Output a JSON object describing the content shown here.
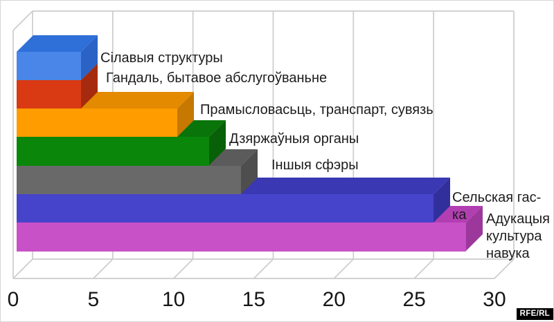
{
  "chart_data": {
    "type": "bar",
    "style": "3d-horizontal-staircase",
    "title": "",
    "xlabel": "",
    "ylabel": "",
    "xlim": [
      0,
      30
    ],
    "x_ticks": [
      0,
      5,
      10,
      15,
      20,
      25,
      30
    ],
    "grid": true,
    "legend": "none",
    "background": "#ffffff",
    "grid_color": "#cccccc",
    "bars": [
      {
        "label": "Сілавыя структуры",
        "lines": [
          "Сілавыя структуры"
        ],
        "value": 4,
        "colors": {
          "front": "#4a86e8",
          "top": "#2f6fd8",
          "side": "#2b62c6"
        }
      },
      {
        "label": "Гандаль, бытавое абслугоўваньне",
        "lines": [
          "Гандаль, бытавое абслугоўваньне"
        ],
        "value": 4,
        "colors": {
          "front": "#d93913",
          "top": "#c33210",
          "side": "#a62b0e"
        }
      },
      {
        "label": "Прамысловасьць, транспарт, сувязь",
        "lines": [
          "Прамысловасьць, транспарт, сувязь"
        ],
        "value": 10,
        "colors": {
          "front": "#ff9c00",
          "top": "#e38a00",
          "side": "#c67800"
        }
      },
      {
        "label": "Дзяржаўныя органы",
        "lines": [
          "Дзяржаўныя органы"
        ],
        "value": 12,
        "colors": {
          "front": "#0a870a",
          "top": "#097409",
          "side": "#086008"
        }
      },
      {
        "label": "Іншыя сфэры",
        "lines": [
          "Іншыя сфэры"
        ],
        "value": 14,
        "colors": {
          "front": "#696969",
          "top": "#5b5b5b",
          "side": "#4e4e4e"
        }
      },
      {
        "label": "Сельская гас-ка",
        "lines": [
          "Сельская гас-ка"
        ],
        "value": 26,
        "colors": {
          "front": "#4644cb",
          "top": "#3a38b2",
          "side": "#312f9c"
        }
      },
      {
        "label": "Адукацыя культура навука",
        "lines": [
          "Адукацыя",
          "культура",
          "навука"
        ],
        "value": 28,
        "colors": {
          "front": "#c851c8",
          "top": "#b23fb2",
          "side": "#9c379c"
        }
      }
    ]
  },
  "watermark": {
    "text": "RFE/RL",
    "bg": "#000000",
    "fg": "#ffffff"
  }
}
